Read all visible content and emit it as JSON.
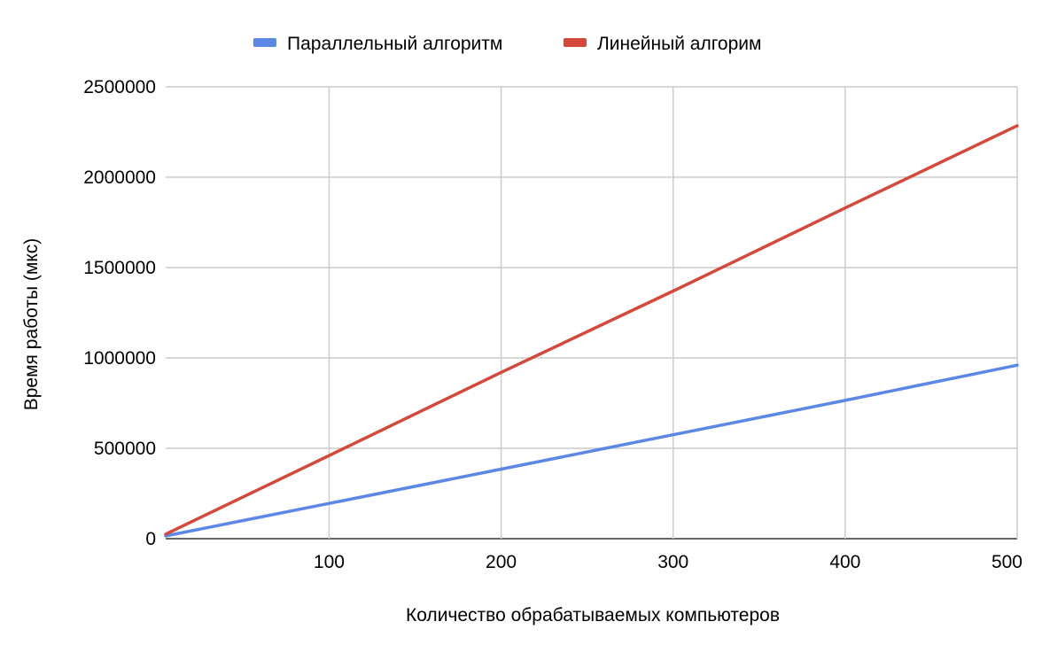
{
  "chart_data": {
    "type": "line",
    "title": "",
    "xlabel": "Количество обрабатываемых компьютеров",
    "ylabel": "Время работы (мкс)",
    "xlim": [
      5,
      500
    ],
    "ylim": [
      0,
      2500000
    ],
    "xticks": [
      100,
      200,
      300,
      400,
      500
    ],
    "yticks": [
      0,
      500000,
      1000000,
      1500000,
      2000000,
      2500000
    ],
    "grid": true,
    "legend_position": "top",
    "series": [
      {
        "name": "Параллельный алгоритм",
        "color": "#5b87e6",
        "x": [
          5,
          100,
          200,
          300,
          400,
          500
        ],
        "y": [
          15000,
          195000,
          385000,
          575000,
          765000,
          960000
        ]
      },
      {
        "name": "Линейный алгорим",
        "color": "#d4493b",
        "x": [
          5,
          100,
          200,
          300,
          400,
          500
        ],
        "y": [
          25000,
          460000,
          920000,
          1370000,
          1830000,
          2285000
        ]
      }
    ]
  }
}
